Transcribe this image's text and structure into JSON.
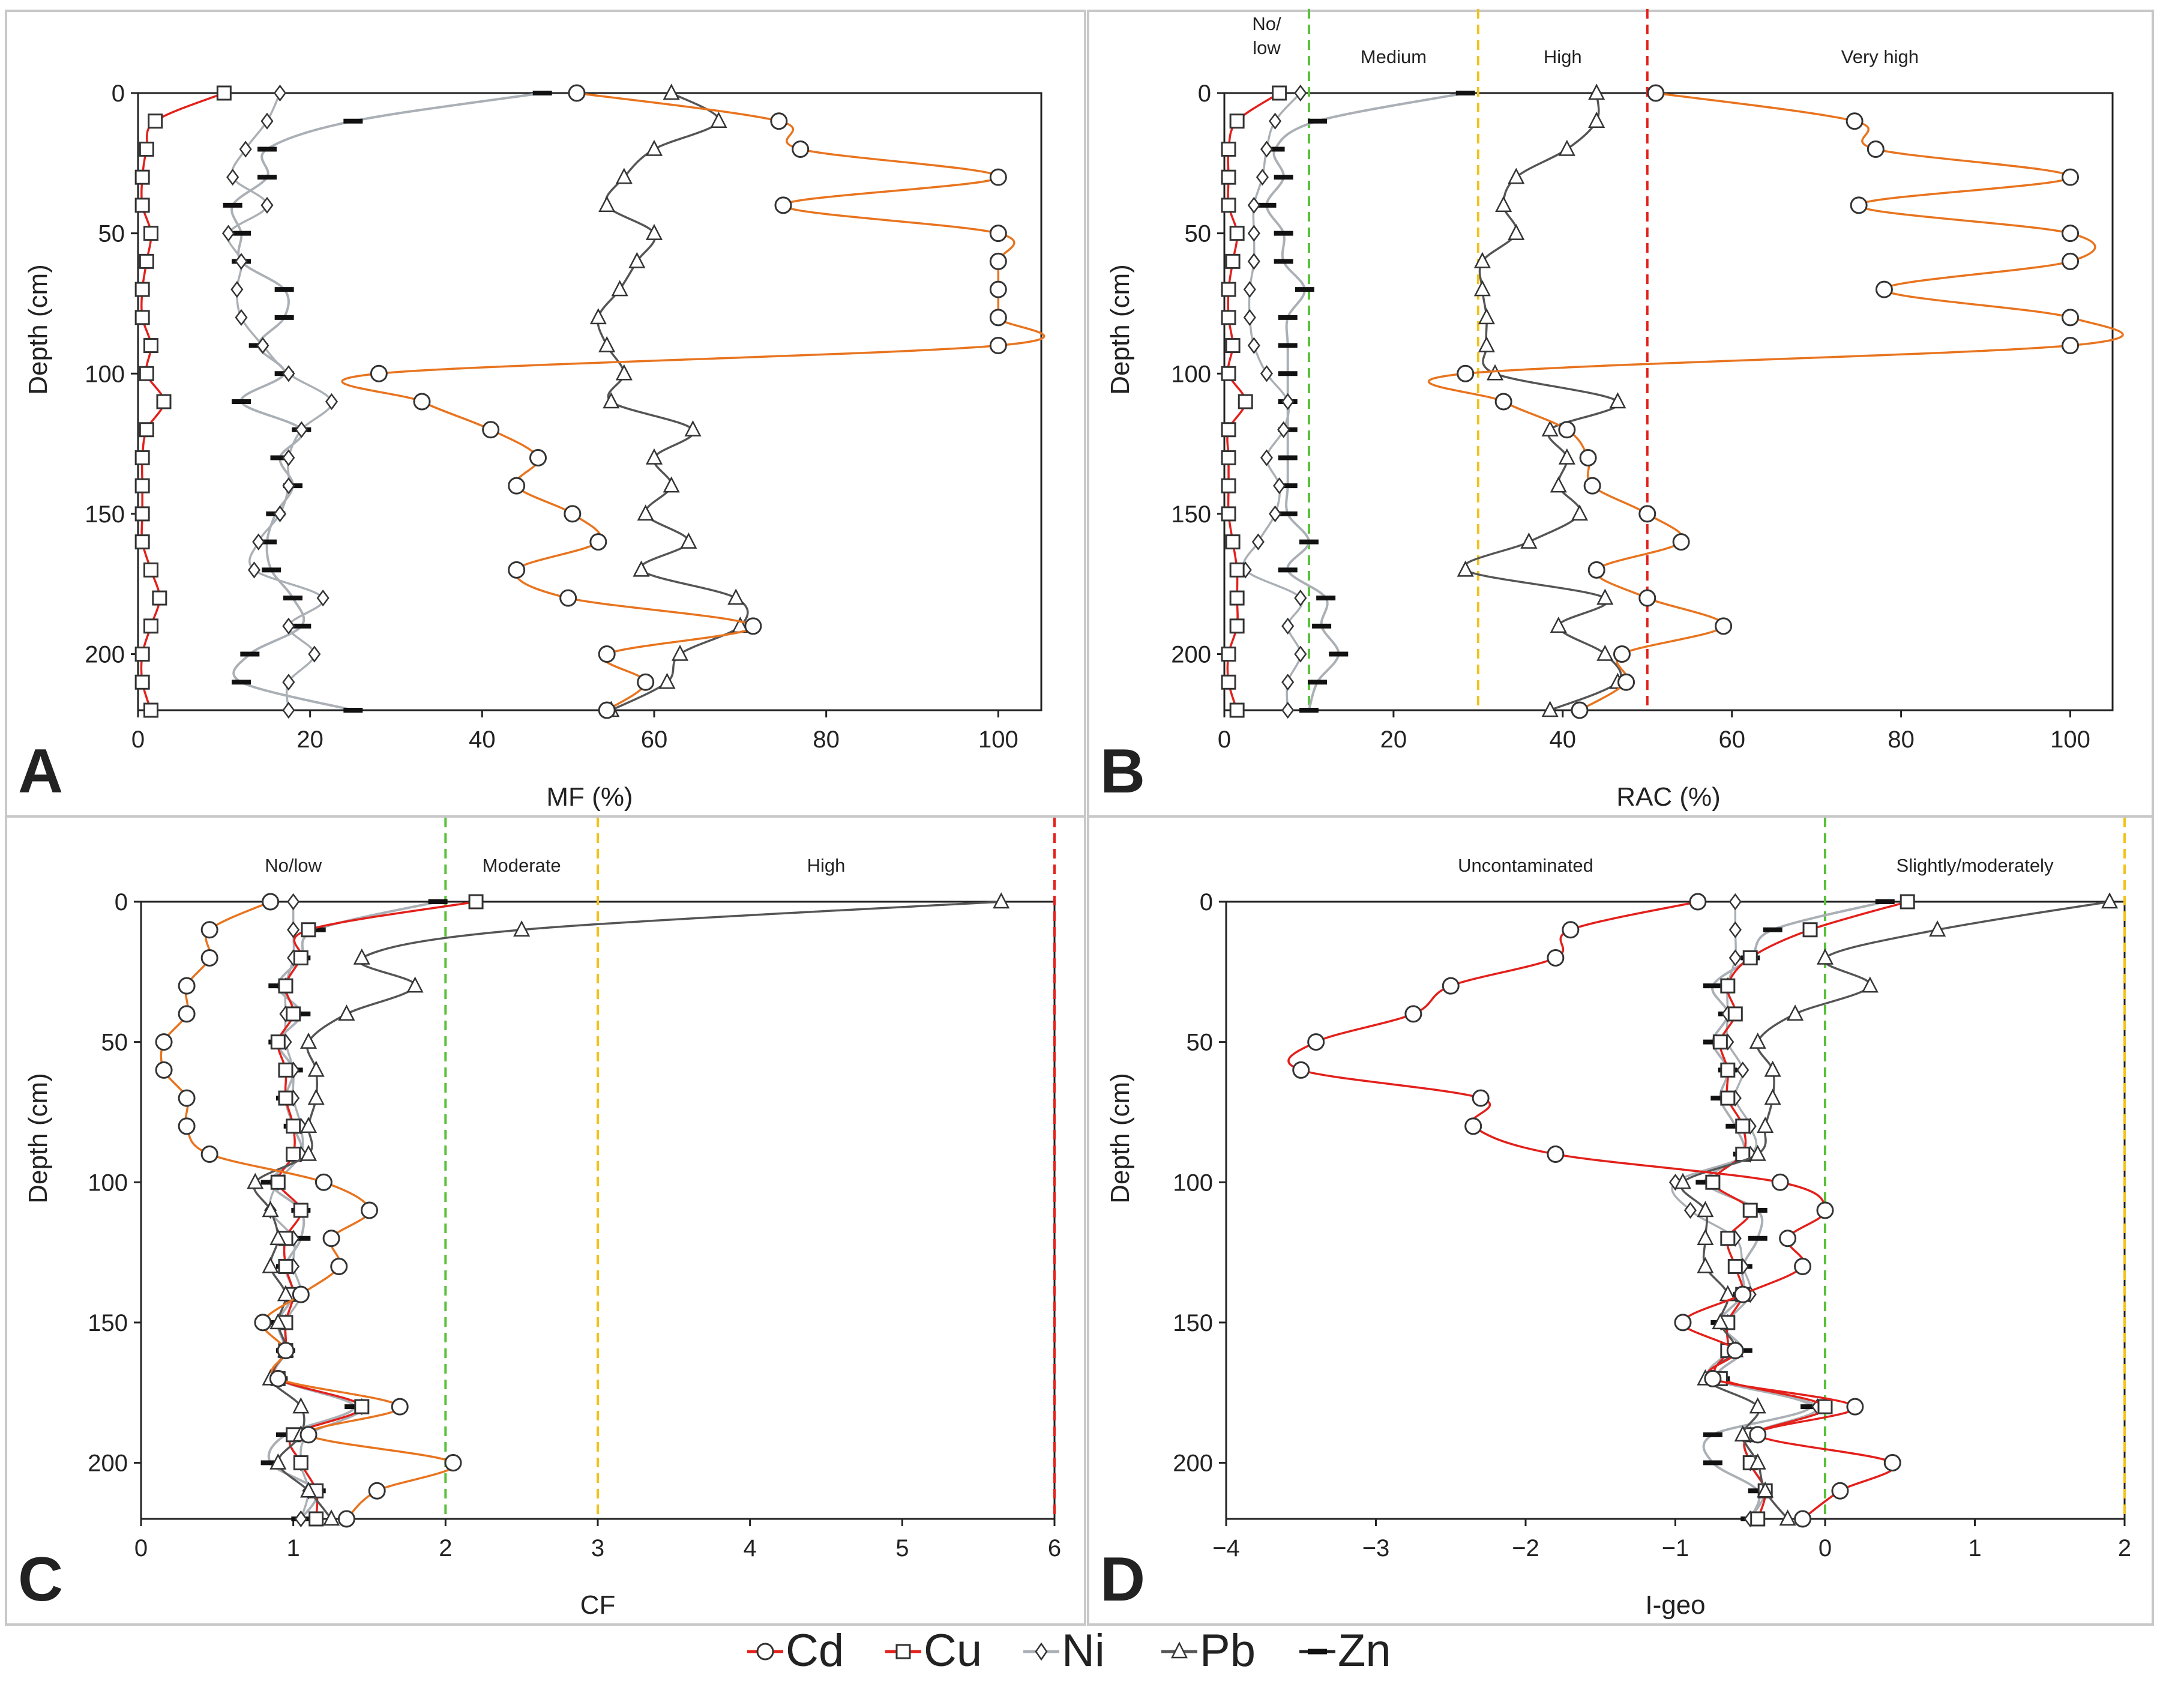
{
  "chart_data": [
    {
      "id": "A",
      "type": "line",
      "letter": "A",
      "xlabel": "MF (%)",
      "ylabel": "Depth (cm)",
      "xlim": [
        0,
        105
      ],
      "ylim": [
        0,
        220
      ],
      "xticks": [
        0,
        20,
        40,
        60,
        80,
        100
      ],
      "yticks": [
        0,
        50,
        100,
        150,
        200
      ],
      "thresholds": [],
      "zones": [],
      "depths": [
        0,
        10,
        20,
        30,
        40,
        50,
        60,
        70,
        80,
        90,
        100,
        110,
        120,
        130,
        140,
        150,
        160,
        170,
        180,
        190,
        200,
        210,
        220
      ],
      "series": [
        {
          "name": "Cd",
          "values": [
            51,
            74.5,
            77,
            100,
            75,
            100,
            100,
            100,
            100,
            100,
            28,
            33,
            41,
            46.5,
            44,
            50.5,
            53.5,
            44,
            50,
            71.5,
            54.5,
            59,
            54.5
          ]
        },
        {
          "name": "Cu",
          "values": [
            10,
            2,
            1,
            0.5,
            0.5,
            1.5,
            1,
            0.5,
            0.5,
            1.5,
            1,
            3,
            1,
            0.5,
            0.5,
            0.5,
            0.5,
            1.5,
            2.5,
            1.5,
            0.5,
            0.5,
            1.5
          ]
        },
        {
          "name": "Ni",
          "values": [
            16.5,
            15,
            12.5,
            11,
            15,
            10.5,
            12,
            11.5,
            12,
            14.5,
            17.5,
            22.5,
            19,
            17.5,
            17.5,
            16.5,
            14,
            13.5,
            21.5,
            17.5,
            20.5,
            17.5,
            17.5
          ]
        },
        {
          "name": "Pb",
          "values": [
            62,
            67.5,
            60,
            56.5,
            54.5,
            60,
            58,
            56,
            53.5,
            54.5,
            56.5,
            55,
            64.5,
            60,
            62,
            59,
            64,
            58.5,
            69.5,
            70,
            63,
            61.5,
            55
          ]
        },
        {
          "name": "Zn",
          "values": [
            47,
            25,
            15,
            15,
            11,
            12,
            12,
            17,
            17,
            14,
            17,
            12,
            19,
            16.5,
            18,
            16,
            15,
            15.5,
            18,
            19,
            13,
            12,
            25
          ]
        }
      ]
    },
    {
      "id": "B",
      "type": "line",
      "letter": "B",
      "xlabel": "RAC (%)",
      "ylabel": "Depth (cm)",
      "xlim": [
        0,
        105
      ],
      "ylim": [
        0,
        220
      ],
      "xticks": [
        0,
        20,
        40,
        60,
        80,
        100
      ],
      "yticks": [
        0,
        50,
        100,
        150,
        200
      ],
      "thresholds": [
        {
          "value": 10,
          "color": "#59c13b"
        },
        {
          "value": 30,
          "color": "#f2c21b"
        },
        {
          "value": 50,
          "color": "#e3201b"
        }
      ],
      "zones": [
        {
          "label": "No/",
          "label2": "low",
          "from": 0,
          "to": 10
        },
        {
          "label": "Medium",
          "from": 10,
          "to": 30
        },
        {
          "label": "High",
          "from": 30,
          "to": 50
        },
        {
          "label": "Very high",
          "from": 50,
          "to": 105
        }
      ],
      "depths": [
        0,
        10,
        20,
        30,
        40,
        50,
        60,
        70,
        80,
        90,
        100,
        110,
        120,
        130,
        140,
        150,
        160,
        170,
        180,
        190,
        200,
        210,
        220
      ],
      "series": [
        {
          "name": "Cd",
          "values": [
            51,
            74.5,
            77,
            100,
            75,
            100,
            100,
            78,
            100,
            100,
            28.5,
            33,
            40.5,
            43,
            43.5,
            50,
            54,
            44,
            50,
            59,
            47,
            47.5,
            42
          ]
        },
        {
          "name": "Cu",
          "values": [
            6.5,
            1.5,
            0.5,
            0.5,
            0.5,
            1.5,
            1,
            0.5,
            0.5,
            1,
            0.5,
            2.5,
            0.5,
            0.5,
            0.5,
            0.5,
            1,
            1.5,
            1.5,
            1.5,
            0.5,
            0.5,
            1.5
          ]
        },
        {
          "name": "Ni",
          "values": [
            9,
            6,
            5,
            4.5,
            3.5,
            3.5,
            3.5,
            3,
            3,
            3.5,
            5,
            7.5,
            7,
            5,
            6.5,
            6,
            4,
            2.5,
            9,
            7.5,
            9,
            7.5,
            7.5
          ]
        },
        {
          "name": "Pb",
          "values": [
            44,
            44,
            40.5,
            34.5,
            33,
            34.5,
            30.5,
            30.5,
            31,
            31,
            32,
            46.5,
            38.5,
            40.5,
            39.5,
            42,
            36,
            28.5,
            45,
            39.5,
            45,
            46.5,
            38.5
          ]
        },
        {
          "name": "Zn",
          "values": [
            28.5,
            11,
            6,
            7,
            5,
            7,
            7,
            9.5,
            7.5,
            7.5,
            7.5,
            7.5,
            7.5,
            7.5,
            7.5,
            7.5,
            10,
            7.5,
            12,
            11.5,
            13.5,
            11,
            10
          ]
        }
      ]
    },
    {
      "id": "C",
      "type": "line",
      "letter": "C",
      "xlabel": "CF",
      "ylabel": "Depth (cm)",
      "xlim": [
        0,
        6
      ],
      "ylim": [
        0,
        220
      ],
      "xticks": [
        0,
        1,
        2,
        3,
        4,
        5,
        6
      ],
      "yticks": [
        0,
        50,
        100,
        150,
        200
      ],
      "thresholds": [
        {
          "value": 2,
          "color": "#59c13b"
        },
        {
          "value": 3,
          "color": "#f2c21b"
        },
        {
          "value": 6,
          "color": "#e3201b"
        }
      ],
      "zones": [
        {
          "label": "No/low",
          "from": 0,
          "to": 2
        },
        {
          "label": "Moderate",
          "from": 2,
          "to": 3
        },
        {
          "label": "High",
          "from": 3,
          "to": 6
        }
      ],
      "depths": [
        0,
        10,
        20,
        30,
        40,
        50,
        60,
        70,
        80,
        90,
        100,
        110,
        120,
        130,
        140,
        150,
        160,
        170,
        180,
        190,
        200,
        210,
        220
      ],
      "series": [
        {
          "name": "Cd",
          "values": [
            0.85,
            0.45,
            0.45,
            0.3,
            0.3,
            0.15,
            0.15,
            0.3,
            0.3,
            0.45,
            1.2,
            1.5,
            1.25,
            1.3,
            1.05,
            0.8,
            0.95,
            0.9,
            1.7,
            1.1,
            2.05,
            1.55,
            1.35
          ]
        },
        {
          "name": "Cu",
          "values": [
            2.2,
            1.1,
            1.05,
            0.95,
            1,
            0.9,
            0.95,
            0.95,
            1,
            1,
            0.9,
            1.05,
            0.95,
            0.95,
            1,
            0.95,
            0.95,
            0.9,
            1.45,
            1,
            1.05,
            1.15,
            1.15
          ]
        },
        {
          "name": "Ni",
          "values": [
            1,
            1,
            1,
            0.95,
            0.95,
            0.95,
            1,
            1,
            1.05,
            1.05,
            0.9,
            0.85,
            1,
            1,
            1.05,
            0.95,
            0.95,
            0.9,
            1.45,
            1.1,
            1.05,
            1.1,
            1.05
          ]
        },
        {
          "name": "Pb",
          "values": [
            5.65,
            2.5,
            1.45,
            1.8,
            1.35,
            1.1,
            1.15,
            1.15,
            1.1,
            1.1,
            0.75,
            0.85,
            0.9,
            0.85,
            0.95,
            0.9,
            0.95,
            0.85,
            1.05,
            1.05,
            0.9,
            1.1,
            1.25
          ]
        },
        {
          "name": "Zn",
          "values": [
            1.95,
            1.15,
            1.05,
            0.9,
            1.05,
            0.9,
            1,
            0.95,
            1,
            1.05,
            0.85,
            1.05,
            1.05,
            0.95,
            1,
            0.9,
            0.95,
            0.9,
            1.4,
            0.95,
            0.85,
            1.15,
            1.05
          ]
        }
      ]
    },
    {
      "id": "D",
      "type": "line",
      "letter": "D",
      "xlabel": "I-geo",
      "ylabel": "Depth (cm)",
      "xlim": [
        -4,
        2
      ],
      "ylim": [
        0,
        220
      ],
      "xticks": [
        -4,
        -3,
        -2,
        -1,
        0,
        1,
        2
      ],
      "yticks": [
        0,
        50,
        100,
        150,
        200
      ],
      "thresholds": [
        {
          "value": 0,
          "color": "#59c13b"
        },
        {
          "value": 2,
          "color": "#f2c21b"
        }
      ],
      "zones": [
        {
          "label": "Uncontaminated",
          "from": -4,
          "to": 0
        },
        {
          "label": "Slightly/moderately",
          "from": 0,
          "to": 2
        }
      ],
      "depths": [
        0,
        10,
        20,
        30,
        40,
        50,
        60,
        70,
        80,
        90,
        100,
        110,
        120,
        130,
        140,
        150,
        160,
        170,
        180,
        190,
        200,
        210,
        220
      ],
      "series": [
        {
          "name": "Cd",
          "values": [
            -0.85,
            -1.7,
            -1.8,
            -2.5,
            -2.75,
            -3.4,
            -3.5,
            -2.3,
            -2.35,
            -1.8,
            -0.3,
            0,
            -0.25,
            -0.15,
            -0.55,
            -0.95,
            -0.6,
            -0.75,
            0.2,
            -0.45,
            0.45,
            0.1,
            -0.15
          ]
        },
        {
          "name": "Cu",
          "values": [
            0.55,
            -0.1,
            -0.5,
            -0.65,
            -0.6,
            -0.7,
            -0.65,
            -0.65,
            -0.55,
            -0.55,
            -0.75,
            -0.5,
            -0.65,
            -0.6,
            -0.55,
            -0.65,
            -0.65,
            -0.7,
            0,
            -0.5,
            -0.5,
            -0.4,
            -0.45
          ]
        },
        {
          "name": "Ni",
          "values": [
            -0.6,
            -0.6,
            -0.6,
            -0.65,
            -0.65,
            -0.65,
            -0.55,
            -0.6,
            -0.5,
            -0.5,
            -1,
            -0.9,
            -0.6,
            -0.55,
            -0.5,
            -0.65,
            -0.65,
            -0.75,
            -0.05,
            -0.5,
            -0.5,
            -0.4,
            -0.5
          ]
        },
        {
          "name": "Pb",
          "values": [
            1.9,
            0.75,
            0,
            0.3,
            -0.2,
            -0.45,
            -0.35,
            -0.35,
            -0.4,
            -0.45,
            -0.95,
            -0.8,
            -0.8,
            -0.8,
            -0.65,
            -0.7,
            -0.6,
            -0.8,
            -0.45,
            -0.55,
            -0.45,
            -0.4,
            -0.25
          ]
        },
        {
          "name": "Zn",
          "values": [
            0.4,
            -0.35,
            -0.5,
            -0.75,
            -0.65,
            -0.75,
            -0.65,
            -0.7,
            -0.6,
            -0.55,
            -0.8,
            -0.45,
            -0.45,
            -0.55,
            -0.55,
            -0.7,
            -0.55,
            -0.7,
            -0.1,
            -0.75,
            -0.75,
            -0.45,
            -0.5
          ]
        }
      ]
    }
  ],
  "legend": {
    "items": [
      {
        "name": "Cd",
        "marker": "circle",
        "color": "#e3201b"
      },
      {
        "name": "Cu",
        "marker": "square",
        "color": "#e3201b"
      },
      {
        "name": "Ni",
        "marker": "diamond",
        "color": "#aab0b5"
      },
      {
        "name": "Pb",
        "marker": "triangle",
        "color": "#555555"
      },
      {
        "name": "Zn",
        "marker": "dash",
        "color": "#222222"
      }
    ]
  },
  "styles": {
    "Cd": {
      "line": "#e8741f",
      "line_cd_in_D": "#e3201b",
      "marker": "circle"
    },
    "Cu": {
      "line": "#e3201b",
      "marker": "square"
    },
    "Ni": {
      "line": "#aab0b5",
      "marker": "diamond"
    },
    "Pb": {
      "line": "#555555",
      "marker": "triangle"
    },
    "Zn": {
      "line": "#aab0b5",
      "marker": "dash"
    },
    "panel_border": "#c8c8c8",
    "axis_color": "#222222"
  }
}
